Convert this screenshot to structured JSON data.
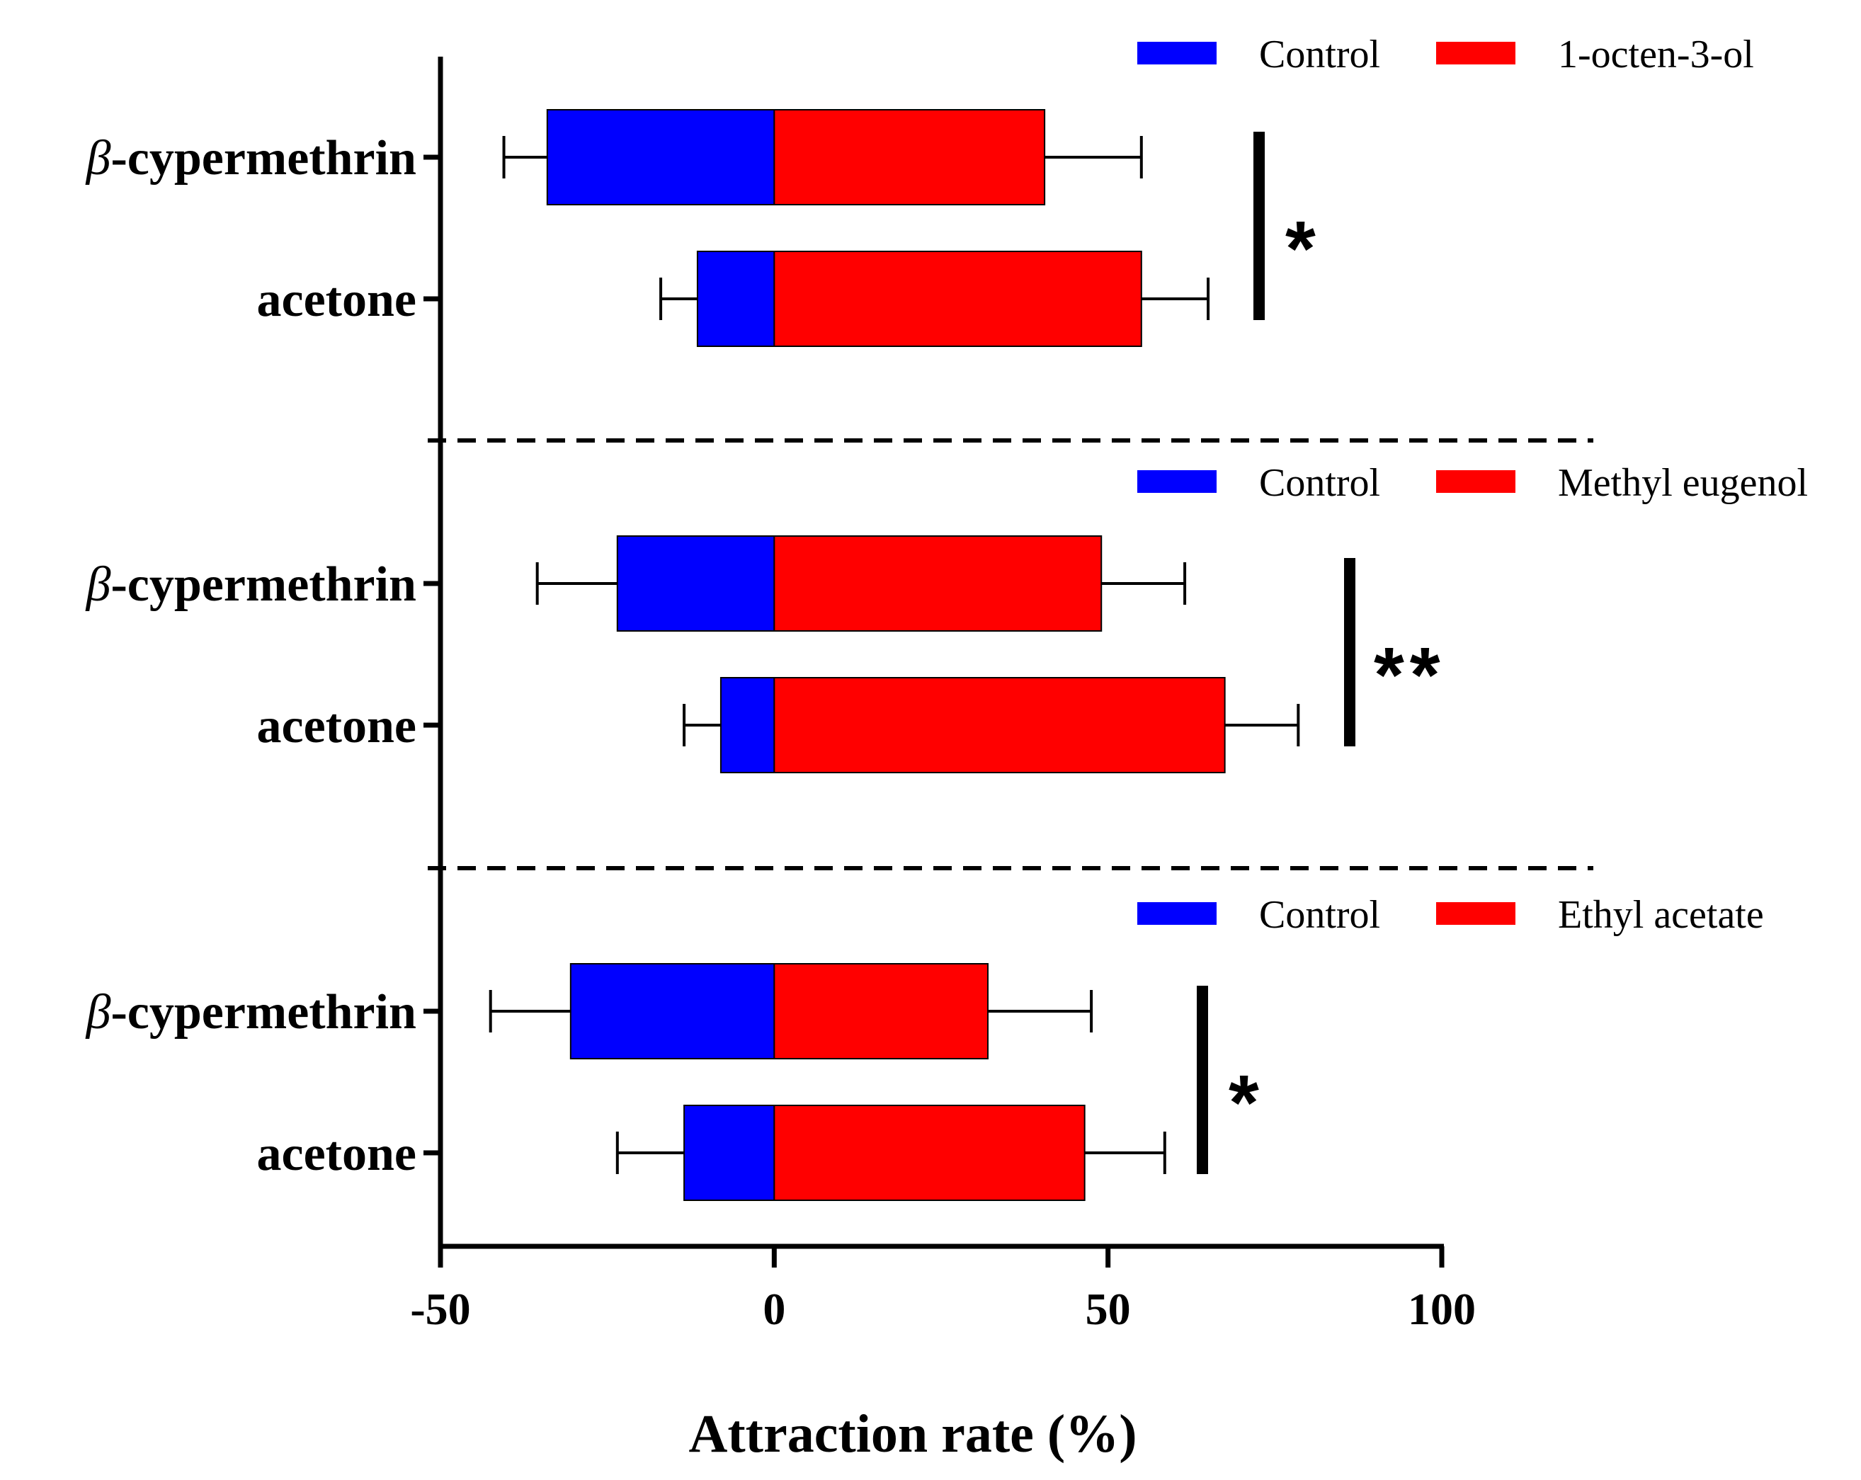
{
  "chart_data": {
    "type": "bar",
    "orientation": "horizontal-diverging",
    "xlabel": "Attraction rate (%)",
    "xlim": [
      -50,
      100
    ],
    "xticks": [
      "-50",
      "0",
      "50",
      "100"
    ],
    "panels": [
      {
        "legend": [
          {
            "name": "Control",
            "color": "#0000ff"
          },
          {
            "name": "1-octen-3-ol",
            "color": "#ff0000"
          }
        ],
        "significance": "*",
        "rows": [
          {
            "prefix": "β",
            "label": "-cypermethrin",
            "control": -34,
            "treatment": 40.5,
            "control_err": -40.5,
            "treatment_err": 55
          },
          {
            "prefix": "",
            "label": "acetone",
            "control": -11.5,
            "treatment": 55,
            "control_err": -17,
            "treatment_err": 65
          }
        ]
      },
      {
        "legend": [
          {
            "name": "Control",
            "color": "#0000ff"
          },
          {
            "name": "Methyl eugenol",
            "color": "#ff0000"
          }
        ],
        "significance": "**",
        "rows": [
          {
            "prefix": "β",
            "label": "-cypermethrin",
            "control": -23.5,
            "treatment": 49,
            "control_err": -35.5,
            "treatment_err": 61.5
          },
          {
            "prefix": "",
            "label": "acetone",
            "control": -8,
            "treatment": 67.5,
            "control_err": -13.5,
            "treatment_err": 78.5
          }
        ]
      },
      {
        "legend": [
          {
            "name": "Control",
            "color": "#0000ff"
          },
          {
            "name": "Ethyl acetate",
            "color": "#ff0000"
          }
        ],
        "significance": "*",
        "rows": [
          {
            "prefix": "β",
            "label": "-cypermethrin",
            "control": -30.5,
            "treatment": 32,
            "control_err": -42.5,
            "treatment_err": 47.5
          },
          {
            "prefix": "",
            "label": "acetone",
            "control": -13.5,
            "treatment": 46.5,
            "control_err": -23.5,
            "treatment_err": 58.5
          }
        ]
      }
    ]
  }
}
